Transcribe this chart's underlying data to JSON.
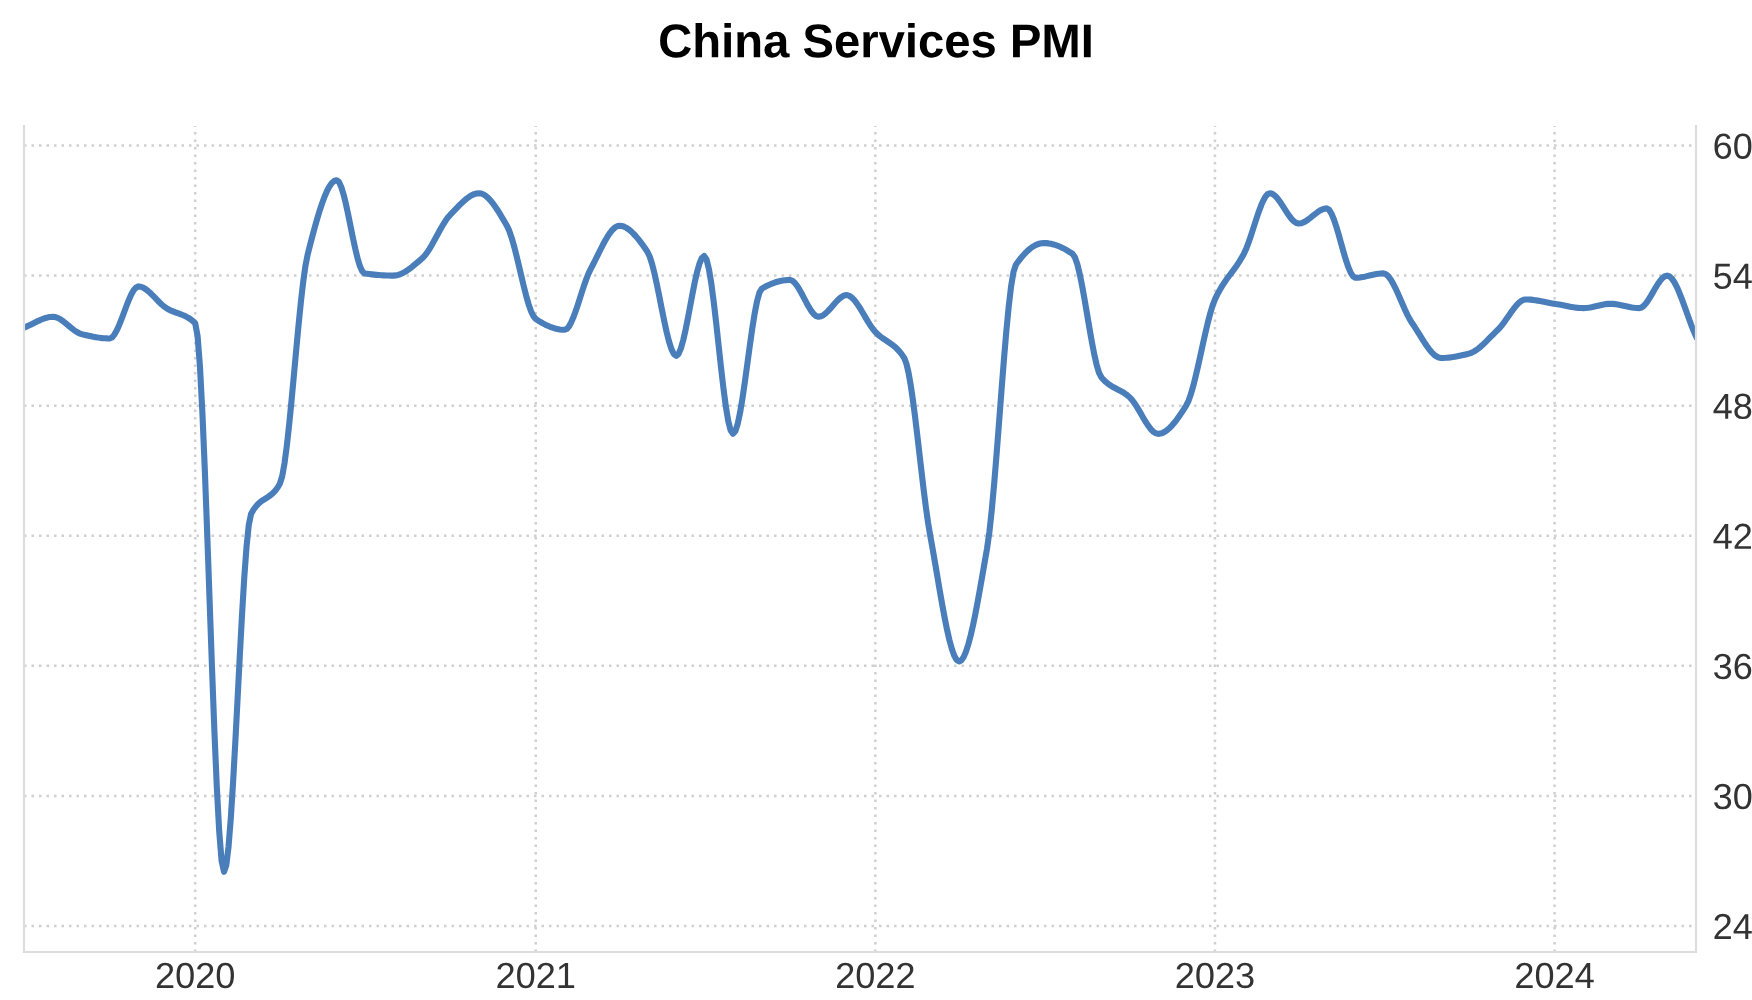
{
  "chart_data": {
    "type": "line",
    "title": "China Services PMI",
    "x": [
      "2019-07",
      "2019-08",
      "2019-09",
      "2019-10",
      "2019-11",
      "2019-12",
      "2020-01",
      "2020-02",
      "2020-03",
      "2020-04",
      "2020-05",
      "2020-06",
      "2020-07",
      "2020-08",
      "2020-09",
      "2020-10",
      "2020-11",
      "2020-12",
      "2021-01",
      "2021-02",
      "2021-03",
      "2021-04",
      "2021-05",
      "2021-06",
      "2021-07",
      "2021-08",
      "2021-09",
      "2021-10",
      "2021-11",
      "2021-12",
      "2022-01",
      "2022-02",
      "2022-03",
      "2022-04",
      "2022-05",
      "2022-06",
      "2022-07",
      "2022-08",
      "2022-09",
      "2022-10",
      "2022-11",
      "2022-12",
      "2023-01",
      "2023-02",
      "2023-03",
      "2023-04",
      "2023-05",
      "2023-06",
      "2023-07",
      "2023-08",
      "2023-09",
      "2023-10",
      "2023-11",
      "2023-12",
      "2024-01",
      "2024-02",
      "2024-03",
      "2024-04",
      "2024-05",
      "2024-06"
    ],
    "series": [
      {
        "color": "#4a7ebb",
        "values": [
          51.6,
          52.1,
          51.3,
          51.1,
          53.5,
          52.5,
          51.8,
          26.5,
          43.0,
          44.4,
          55.0,
          58.4,
          54.1,
          54.0,
          54.8,
          56.8,
          57.8,
          56.3,
          52.0,
          51.5,
          54.3,
          56.3,
          55.1,
          50.3,
          54.9,
          46.7,
          53.4,
          53.8,
          52.1,
          53.1,
          51.4,
          50.2,
          42.0,
          36.2,
          41.4,
          54.5,
          55.5,
          55.0,
          49.3,
          48.4,
          46.7,
          48.0,
          52.9,
          55.0,
          57.8,
          56.4,
          57.1,
          53.9,
          54.1,
          51.8,
          50.2,
          50.4,
          51.5,
          52.9,
          52.7,
          52.5,
          52.7,
          52.5,
          54.0,
          51.2
        ]
      }
    ],
    "xlim": [
      "2019-07",
      "2024-06"
    ],
    "xticks": [
      {
        "value": "2020",
        "label": "2020"
      },
      {
        "value": "2021",
        "label": "2021"
      },
      {
        "value": "2022",
        "label": "2022"
      },
      {
        "value": "2023",
        "label": "2023"
      },
      {
        "value": "2024",
        "label": "2024"
      }
    ],
    "ylim": [
      22.8,
      60.9
    ],
    "yticks": [
      24,
      30,
      36,
      42,
      48,
      54,
      60
    ],
    "grid": true,
    "marker": "none",
    "line_style": "solid"
  }
}
